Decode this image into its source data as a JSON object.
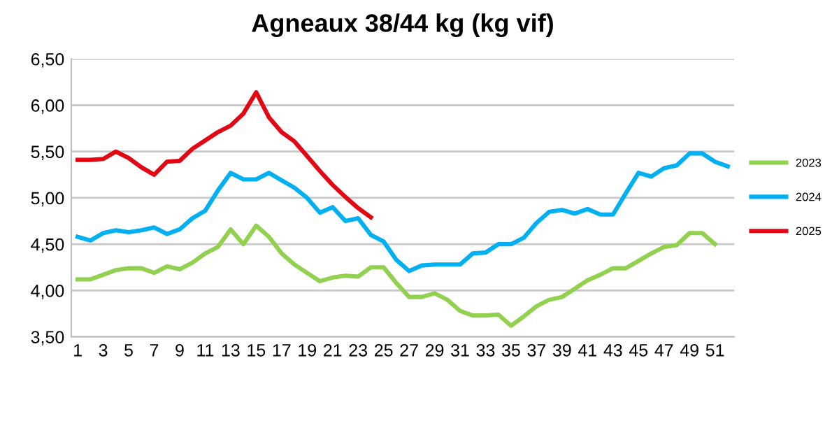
{
  "chart_data": {
    "type": "line",
    "title": "Agneaux 38/44 kg (kg vif)",
    "categories": [
      "1",
      null,
      "3",
      null,
      "5",
      null,
      "7",
      null,
      "9",
      null,
      "11",
      null,
      "13",
      null,
      "15",
      null,
      "17",
      null,
      "19",
      null,
      "21",
      null,
      "23",
      null,
      "25",
      null,
      "27",
      null,
      "29",
      null,
      "31",
      null,
      "33",
      null,
      "35",
      null,
      "37",
      null,
      "39",
      null,
      "41",
      null,
      "43",
      null,
      "45",
      null,
      "47",
      null,
      "49",
      null,
      "51",
      null
    ],
    "series": [
      {
        "name": "2023",
        "color": "#92d050",
        "values": [
          4.12,
          4.12,
          4.17,
          4.22,
          4.24,
          4.24,
          4.19,
          4.26,
          4.23,
          4.3,
          4.4,
          4.47,
          4.66,
          4.5,
          4.7,
          4.58,
          4.4,
          4.28,
          4.19,
          4.1,
          4.14,
          4.16,
          4.15,
          4.25,
          4.25,
          4.08,
          3.93,
          3.93,
          3.97,
          3.9,
          3.78,
          3.73,
          3.73,
          3.74,
          3.62,
          3.72,
          3.83,
          3.9,
          3.93,
          4.02,
          4.11,
          4.17,
          4.24,
          4.24,
          4.32,
          4.4,
          4.47,
          4.49,
          4.62,
          4.62,
          4.5,
          null
        ]
      },
      {
        "name": "2024",
        "color": "#00b0f0",
        "values": [
          4.58,
          4.54,
          4.62,
          4.65,
          4.63,
          4.65,
          4.68,
          4.61,
          4.66,
          4.78,
          4.86,
          5.08,
          5.27,
          5.2,
          5.2,
          5.27,
          5.19,
          5.11,
          5.0,
          4.84,
          4.9,
          4.75,
          4.78,
          4.6,
          4.53,
          4.33,
          4.21,
          4.27,
          4.28,
          4.28,
          4.28,
          4.4,
          4.41,
          4.5,
          4.5,
          4.57,
          4.73,
          4.85,
          4.87,
          4.83,
          4.88,
          4.82,
          4.82,
          5.05,
          5.27,
          5.23,
          5.32,
          5.35,
          5.48,
          5.48,
          5.39,
          5.34
        ]
      },
      {
        "name": "2025",
        "color": "#e30613",
        "values": [
          5.41,
          5.41,
          5.42,
          5.5,
          5.43,
          5.33,
          5.25,
          5.39,
          5.4,
          5.53,
          5.62,
          5.71,
          5.78,
          5.91,
          6.14,
          5.87,
          5.71,
          5.61,
          5.45,
          5.29,
          5.14,
          5.01,
          4.89,
          4.79,
          null,
          null,
          null,
          null,
          null,
          null,
          null,
          null,
          null,
          null,
          null,
          null,
          null,
          null,
          null,
          null,
          null,
          null,
          null,
          null,
          null,
          null,
          null,
          null,
          null,
          null,
          null,
          null
        ]
      }
    ],
    "ylim": [
      3.5,
      6.5
    ],
    "yticks": [
      {
        "value": 3.5,
        "label": "3,50"
      },
      {
        "value": 4.0,
        "label": "4,00"
      },
      {
        "value": 4.5,
        "label": "4,50"
      },
      {
        "value": 5.0,
        "label": "5,00"
      },
      {
        "value": 5.5,
        "label": "5,50"
      },
      {
        "value": 6.0,
        "label": "6,00"
      },
      {
        "value": 6.5,
        "label": "6,50"
      }
    ],
    "grid": "y",
    "legend": "right",
    "marker": "none",
    "line_style": "solid"
  }
}
